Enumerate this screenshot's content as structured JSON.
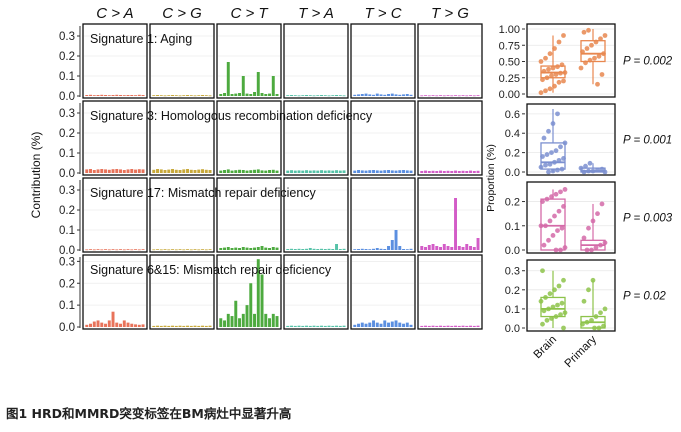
{
  "caption": "图1 HRD和MMRD突变标签在BM病灶中显著升高",
  "chart_data": [
    {
      "type": "bar",
      "panel": "signature-contributions",
      "ylabel": "Contribution (%)",
      "column_headers": [
        "C > A",
        "C > G",
        "C > T",
        "T > A",
        "T > C",
        "T > G"
      ],
      "colors": [
        "#e8735a",
        "#c8a93a",
        "#4daa3f",
        "#56c2a8",
        "#5b8fe0",
        "#d35cc7"
      ],
      "rows": [
        {
          "title": "Signature 1: Aging",
          "ylim": [
            0,
            0.35
          ],
          "yticks": [
            "0.3",
            "0.2",
            "0.1",
            "0.0"
          ],
          "ytick_values": [
            0.3,
            0.2,
            0.1,
            0.0
          ],
          "values": [
            [
              0.005,
              0.006,
              0.004,
              0.005,
              0.006,
              0.005,
              0.004,
              0.005,
              0.006,
              0.005,
              0.004,
              0.005,
              0.005,
              0.004,
              0.006,
              0.005
            ],
            [
              0.004,
              0.005,
              0.004,
              0.003,
              0.004,
              0.005,
              0.004,
              0.003,
              0.004,
              0.005,
              0.004,
              0.003,
              0.004,
              0.005,
              0.004,
              0.003
            ],
            [
              0.01,
              0.015,
              0.17,
              0.01,
              0.012,
              0.015,
              0.1,
              0.012,
              0.01,
              0.02,
              0.12,
              0.015,
              0.01,
              0.012,
              0.1,
              0.01
            ],
            [
              0.004,
              0.005,
              0.004,
              0.003,
              0.004,
              0.005,
              0.004,
              0.003,
              0.004,
              0.005,
              0.004,
              0.003,
              0.004,
              0.005,
              0.004,
              0.003
            ],
            [
              0.006,
              0.008,
              0.01,
              0.012,
              0.008,
              0.006,
              0.012,
              0.008,
              0.006,
              0.01,
              0.012,
              0.008,
              0.006,
              0.008,
              0.01,
              0.006
            ],
            [
              0.003,
              0.004,
              0.003,
              0.004,
              0.003,
              0.004,
              0.003,
              0.004,
              0.003,
              0.004,
              0.003,
              0.004,
              0.003,
              0.004,
              0.003,
              0.004
            ]
          ]
        },
        {
          "title": "Signature 3: Homologous recombination deficiency",
          "ylim": [
            0,
            0.35
          ],
          "yticks": [
            "0.3",
            "0.2",
            "0.1",
            "0.0"
          ],
          "ytick_values": [
            0.3,
            0.2,
            0.1,
            0.0
          ],
          "values": [
            [
              0.018,
              0.02,
              0.015,
              0.018,
              0.02,
              0.018,
              0.016,
              0.019,
              0.02,
              0.018,
              0.015,
              0.018,
              0.02,
              0.017,
              0.019,
              0.018
            ],
            [
              0.016,
              0.02,
              0.018,
              0.015,
              0.017,
              0.02,
              0.016,
              0.015,
              0.018,
              0.02,
              0.016,
              0.015,
              0.017,
              0.019,
              0.016,
              0.015
            ],
            [
              0.012,
              0.015,
              0.018,
              0.012,
              0.014,
              0.016,
              0.015,
              0.012,
              0.014,
              0.016,
              0.018,
              0.013,
              0.012,
              0.015,
              0.016,
              0.012
            ],
            [
              0.012,
              0.014,
              0.012,
              0.013,
              0.012,
              0.014,
              0.012,
              0.013,
              0.012,
              0.014,
              0.012,
              0.013,
              0.012,
              0.014,
              0.012,
              0.013
            ],
            [
              0.012,
              0.015,
              0.013,
              0.012,
              0.014,
              0.015,
              0.013,
              0.012,
              0.014,
              0.015,
              0.013,
              0.012,
              0.014,
              0.015,
              0.013,
              0.012
            ],
            [
              0.01,
              0.012,
              0.01,
              0.011,
              0.01,
              0.012,
              0.01,
              0.011,
              0.01,
              0.012,
              0.01,
              0.011,
              0.01,
              0.012,
              0.01,
              0.011
            ]
          ]
        },
        {
          "title": "Signature 17: Mismatch repair deficiency",
          "ylim": [
            0,
            0.35
          ],
          "yticks": [
            "0.3",
            "0.2",
            "0.1",
            "0.0"
          ],
          "ytick_values": [
            0.3,
            0.2,
            0.1,
            0.0
          ],
          "values": [
            [
              0.003,
              0.004,
              0.003,
              0.004,
              0.003,
              0.004,
              0.003,
              0.004,
              0.003,
              0.004,
              0.003,
              0.004,
              0.003,
              0.004,
              0.003,
              0.004
            ],
            [
              0.003,
              0.004,
              0.003,
              0.004,
              0.003,
              0.004,
              0.003,
              0.004,
              0.003,
              0.004,
              0.003,
              0.004,
              0.003,
              0.004,
              0.003,
              0.004
            ],
            [
              0.01,
              0.012,
              0.015,
              0.01,
              0.012,
              0.01,
              0.015,
              0.012,
              0.01,
              0.012,
              0.015,
              0.02,
              0.012,
              0.01,
              0.015,
              0.012
            ],
            [
              0.005,
              0.006,
              0.005,
              0.006,
              0.005,
              0.006,
              0.01,
              0.006,
              0.005,
              0.006,
              0.005,
              0.006,
              0.005,
              0.03,
              0.005,
              0.006
            ],
            [
              0.004,
              0.005,
              0.006,
              0.005,
              0.004,
              0.006,
              0.01,
              0.006,
              0.005,
              0.02,
              0.05,
              0.1,
              0.02,
              0.005,
              0.004,
              0.006
            ],
            [
              0.02,
              0.015,
              0.025,
              0.03,
              0.02,
              0.015,
              0.03,
              0.02,
              0.015,
              0.26,
              0.02,
              0.015,
              0.03,
              0.02,
              0.015,
              0.06
            ]
          ]
        },
        {
          "title": "Signature 6&15: Mismatch repair deficiency",
          "ylim": [
            0,
            0.32
          ],
          "yticks": [
            "0.3",
            "0.2",
            "0.1",
            "0.0"
          ],
          "ytick_values": [
            0.3,
            0.2,
            0.1,
            0.0
          ],
          "values": [
            [
              0.01,
              0.015,
              0.025,
              0.03,
              0.02,
              0.015,
              0.03,
              0.07,
              0.02,
              0.015,
              0.03,
              0.02,
              0.015,
              0.012,
              0.01,
              0.012
            ],
            [
              0.005,
              0.006,
              0.005,
              0.006,
              0.005,
              0.006,
              0.005,
              0.006,
              0.005,
              0.006,
              0.005,
              0.006,
              0.005,
              0.006,
              0.005,
              0.006
            ],
            [
              0.04,
              0.03,
              0.06,
              0.05,
              0.12,
              0.04,
              0.06,
              0.1,
              0.2,
              0.06,
              0.31,
              0.24,
              0.06,
              0.04,
              0.06,
              0.05
            ],
            [
              0.005,
              0.006,
              0.005,
              0.006,
              0.005,
              0.006,
              0.005,
              0.006,
              0.005,
              0.006,
              0.005,
              0.006,
              0.005,
              0.006,
              0.005,
              0.006
            ],
            [
              0.01,
              0.015,
              0.02,
              0.015,
              0.02,
              0.03,
              0.02,
              0.015,
              0.03,
              0.02,
              0.025,
              0.03,
              0.02,
              0.015,
              0.02,
              0.01
            ],
            [
              0.005,
              0.006,
              0.005,
              0.006,
              0.005,
              0.006,
              0.005,
              0.006,
              0.005,
              0.006,
              0.005,
              0.006,
              0.005,
              0.006,
              0.005,
              0.006
            ]
          ]
        }
      ]
    },
    {
      "type": "box",
      "panel": "signature-proportions",
      "ylabel": "Proportion (%)",
      "categories": [
        "Brain",
        "Primary"
      ],
      "rows": [
        {
          "color": "#e8874f",
          "pvalue": "P = 0.002",
          "ylim": [
            0,
            1.0
          ],
          "yticks": [
            "1.00",
            "0.75",
            "0.50",
            "0.25",
            "0.00"
          ],
          "ytick_values": [
            1.0,
            0.75,
            0.5,
            0.25,
            0.0
          ],
          "boxes": [
            {
              "whisker_low": 0.02,
              "q1": 0.25,
              "median": 0.33,
              "q3": 0.43,
              "whisker_high": 0.9
            },
            {
              "whisker_low": 0.15,
              "q1": 0.5,
              "median": 0.62,
              "q3": 0.82,
              "whisker_high": 1.0
            }
          ],
          "points": [
            [
              0.02,
              0.05,
              0.08,
              0.12,
              0.18,
              0.2,
              0.22,
              0.25,
              0.28,
              0.3,
              0.32,
              0.33,
              0.35,
              0.38,
              0.4,
              0.42,
              0.45,
              0.5,
              0.55,
              0.62,
              0.7,
              0.8,
              0.9
            ],
            [
              0.15,
              0.3,
              0.4,
              0.48,
              0.52,
              0.55,
              0.58,
              0.62,
              0.65,
              0.7,
              0.75,
              0.8,
              0.85,
              0.9,
              0.95,
              0.98
            ]
          ]
        },
        {
          "color": "#7b8fd0",
          "pvalue": "P = 0.001",
          "ylim": [
            0,
            0.65
          ],
          "yticks": [
            "0.6",
            "0.4",
            "0.2",
            "0.0"
          ],
          "ytick_values": [
            0.6,
            0.4,
            0.2,
            0.0
          ],
          "boxes": [
            {
              "whisker_low": 0.0,
              "q1": 0.03,
              "median": 0.1,
              "q3": 0.3,
              "whisker_high": 0.65
            },
            {
              "whisker_low": 0.0,
              "q1": 0.0,
              "median": 0.01,
              "q3": 0.04,
              "whisker_high": 0.09
            }
          ],
          "points": [
            [
              0.0,
              0.01,
              0.02,
              0.03,
              0.05,
              0.07,
              0.08,
              0.1,
              0.12,
              0.14,
              0.16,
              0.18,
              0.2,
              0.22,
              0.26,
              0.3,
              0.35,
              0.42,
              0.5,
              0.6
            ],
            [
              0.0,
              0.0,
              0.01,
              0.01,
              0.02,
              0.03,
              0.04,
              0.06,
              0.09
            ]
          ]
        },
        {
          "color": "#d46aa8",
          "pvalue": "P = 0.003",
          "ylim": [
            0,
            0.26
          ],
          "yticks": [
            "0.2",
            "0.1",
            "0.0"
          ],
          "ytick_values": [
            0.2,
            0.1,
            0.0
          ],
          "boxes": [
            {
              "whisker_low": 0.0,
              "q1": 0.0,
              "median": 0.1,
              "q3": 0.21,
              "whisker_high": 0.25
            },
            {
              "whisker_low": 0.0,
              "q1": 0.0,
              "median": 0.02,
              "q3": 0.04,
              "whisker_high": 0.19
            }
          ],
          "points": [
            [
              0.0,
              0.0,
              0.01,
              0.02,
              0.04,
              0.06,
              0.08,
              0.09,
              0.1,
              0.1,
              0.12,
              0.14,
              0.16,
              0.18,
              0.2,
              0.21,
              0.22,
              0.23,
              0.24,
              0.25
            ],
            [
              0.0,
              0.0,
              0.01,
              0.02,
              0.03,
              0.05,
              0.09,
              0.12,
              0.15,
              0.19
            ]
          ]
        },
        {
          "color": "#8dc34a",
          "pvalue": "P = 0.02",
          "ylim": [
            0,
            0.33
          ],
          "yticks": [
            "0.3",
            "0.2",
            "0.1",
            "0.0"
          ],
          "ytick_values": [
            0.3,
            0.2,
            0.1,
            0.0
          ],
          "boxes": [
            {
              "whisker_low": 0.0,
              "q1": 0.06,
              "median": 0.1,
              "q3": 0.16,
              "whisker_high": 0.3
            },
            {
              "whisker_low": 0.0,
              "q1": 0.0,
              "median": 0.03,
              "q3": 0.06,
              "whisker_high": 0.25
            }
          ],
          "points": [
            [
              0.0,
              0.02,
              0.04,
              0.05,
              0.06,
              0.07,
              0.08,
              0.09,
              0.1,
              0.11,
              0.12,
              0.13,
              0.14,
              0.16,
              0.18,
              0.2,
              0.22,
              0.25,
              0.3
            ],
            [
              0.0,
              0.0,
              0.01,
              0.02,
              0.03,
              0.04,
              0.06,
              0.08,
              0.1,
              0.14,
              0.2,
              0.25
            ]
          ]
        }
      ]
    }
  ]
}
